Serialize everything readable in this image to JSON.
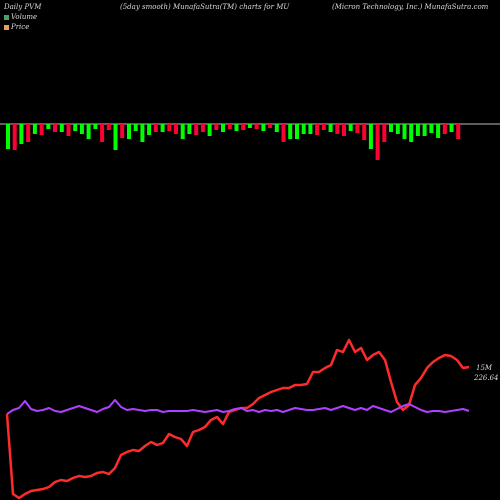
{
  "header": {
    "left": "Daily PVM",
    "center": "(5day smooth) MunafaSutra(TM) charts for MU",
    "right": "(Micron Technology, Inc.) MunafaSutra.com"
  },
  "legend": {
    "volume_label": "Volume",
    "price_label": "Price",
    "volume_color": "#4a9e6a",
    "price_color": "#e0a060"
  },
  "end_labels": {
    "volume": "15M",
    "price": "226.64"
  },
  "colors": {
    "up": "#00ff00",
    "down": "#ff0033",
    "price_line": "#ff2a2a",
    "volume_line": "#b040ff",
    "zero_line": "#bbbbbb"
  },
  "chart_data": {
    "type": "line",
    "bars": [
      {
        "v": -25,
        "up": true
      },
      {
        "v": -26,
        "up": false
      },
      {
        "v": -20,
        "up": true
      },
      {
        "v": -18,
        "up": false
      },
      {
        "v": -10,
        "up": true
      },
      {
        "v": -11,
        "up": false
      },
      {
        "v": -5,
        "up": true
      },
      {
        "v": -8,
        "up": false
      },
      {
        "v": -8,
        "up": true
      },
      {
        "v": -12,
        "up": false
      },
      {
        "v": -7,
        "up": true
      },
      {
        "v": -10,
        "up": true
      },
      {
        "v": -15,
        "up": true
      },
      {
        "v": -5,
        "up": true
      },
      {
        "v": -18,
        "up": false
      },
      {
        "v": -6,
        "up": false
      },
      {
        "v": -26,
        "up": true
      },
      {
        "v": -14,
        "up": false
      },
      {
        "v": -15,
        "up": true
      },
      {
        "v": -7,
        "up": true
      },
      {
        "v": -18,
        "up": true
      },
      {
        "v": -11,
        "up": true
      },
      {
        "v": -8,
        "up": false
      },
      {
        "v": -8,
        "up": true
      },
      {
        "v": -7,
        "up": false
      },
      {
        "v": -10,
        "up": false
      },
      {
        "v": -15,
        "up": true
      },
      {
        "v": -10,
        "up": true
      },
      {
        "v": -11,
        "up": false
      },
      {
        "v": -8,
        "up": false
      },
      {
        "v": -12,
        "up": true
      },
      {
        "v": -6,
        "up": false
      },
      {
        "v": -8,
        "up": true
      },
      {
        "v": -5,
        "up": false
      },
      {
        "v": -7,
        "up": true
      },
      {
        "v": -6,
        "up": false
      },
      {
        "v": -4,
        "up": true
      },
      {
        "v": -5,
        "up": false
      },
      {
        "v": -7,
        "up": true
      },
      {
        "v": -4,
        "up": false
      },
      {
        "v": -8,
        "up": true
      },
      {
        "v": -18,
        "up": false
      },
      {
        "v": -15,
        "up": true
      },
      {
        "v": -15,
        "up": true
      },
      {
        "v": -10,
        "up": true
      },
      {
        "v": -10,
        "up": true
      },
      {
        "v": -11,
        "up": false
      },
      {
        "v": -6,
        "up": false
      },
      {
        "v": -8,
        "up": true
      },
      {
        "v": -10,
        "up": false
      },
      {
        "v": -12,
        "up": false
      },
      {
        "v": -7,
        "up": true
      },
      {
        "v": -9,
        "up": false
      },
      {
        "v": -16,
        "up": false
      },
      {
        "v": -25,
        "up": true
      },
      {
        "v": -36,
        "up": false
      },
      {
        "v": -18,
        "up": false
      },
      {
        "v": -8,
        "up": true
      },
      {
        "v": -10,
        "up": true
      },
      {
        "v": -15,
        "up": true
      },
      {
        "v": -18,
        "up": true
      },
      {
        "v": -12,
        "up": true
      },
      {
        "v": -12,
        "up": true
      },
      {
        "v": -9,
        "up": true
      },
      {
        "v": -14,
        "up": true
      },
      {
        "v": -10,
        "up": false
      },
      {
        "v": -8,
        "up": true
      },
      {
        "v": -15,
        "up": false
      }
    ],
    "price": [
      86,
      6,
      2,
      6,
      9,
      10,
      11,
      13,
      18,
      20,
      19,
      22,
      24,
      23,
      24,
      27,
      28,
      26,
      32,
      45,
      48,
      50,
      49,
      54,
      58,
      55,
      57,
      66,
      63,
      61,
      54,
      68,
      70,
      73,
      80,
      83,
      76,
      88,
      90,
      92,
      92,
      96,
      102,
      105,
      108,
      110,
      112,
      112,
      115,
      115,
      116,
      128,
      128,
      132,
      135,
      150,
      148,
      160,
      148,
      152,
      140,
      145,
      148,
      140,
      118,
      98,
      90,
      95,
      115,
      122,
      132,
      138,
      142,
      145,
      144,
      140,
      132,
      133
    ],
    "volume": [
      86,
      90,
      92,
      99,
      91,
      89,
      90,
      92,
      89,
      88,
      90,
      92,
      94,
      92,
      90,
      88,
      91,
      93,
      100,
      93,
      90,
      91,
      90,
      89,
      90,
      90,
      88,
      89,
      89,
      89,
      89,
      90,
      89,
      88,
      89,
      90,
      88,
      89,
      91,
      92,
      89,
      90,
      88,
      90,
      89,
      90,
      88,
      90,
      92,
      91,
      90,
      90,
      91,
      92,
      90,
      92,
      94,
      92,
      90,
      92,
      90,
      94,
      92,
      90,
      88,
      91,
      94,
      96,
      93,
      90,
      88,
      89,
      89,
      88,
      89,
      90,
      91,
      89
    ]
  }
}
